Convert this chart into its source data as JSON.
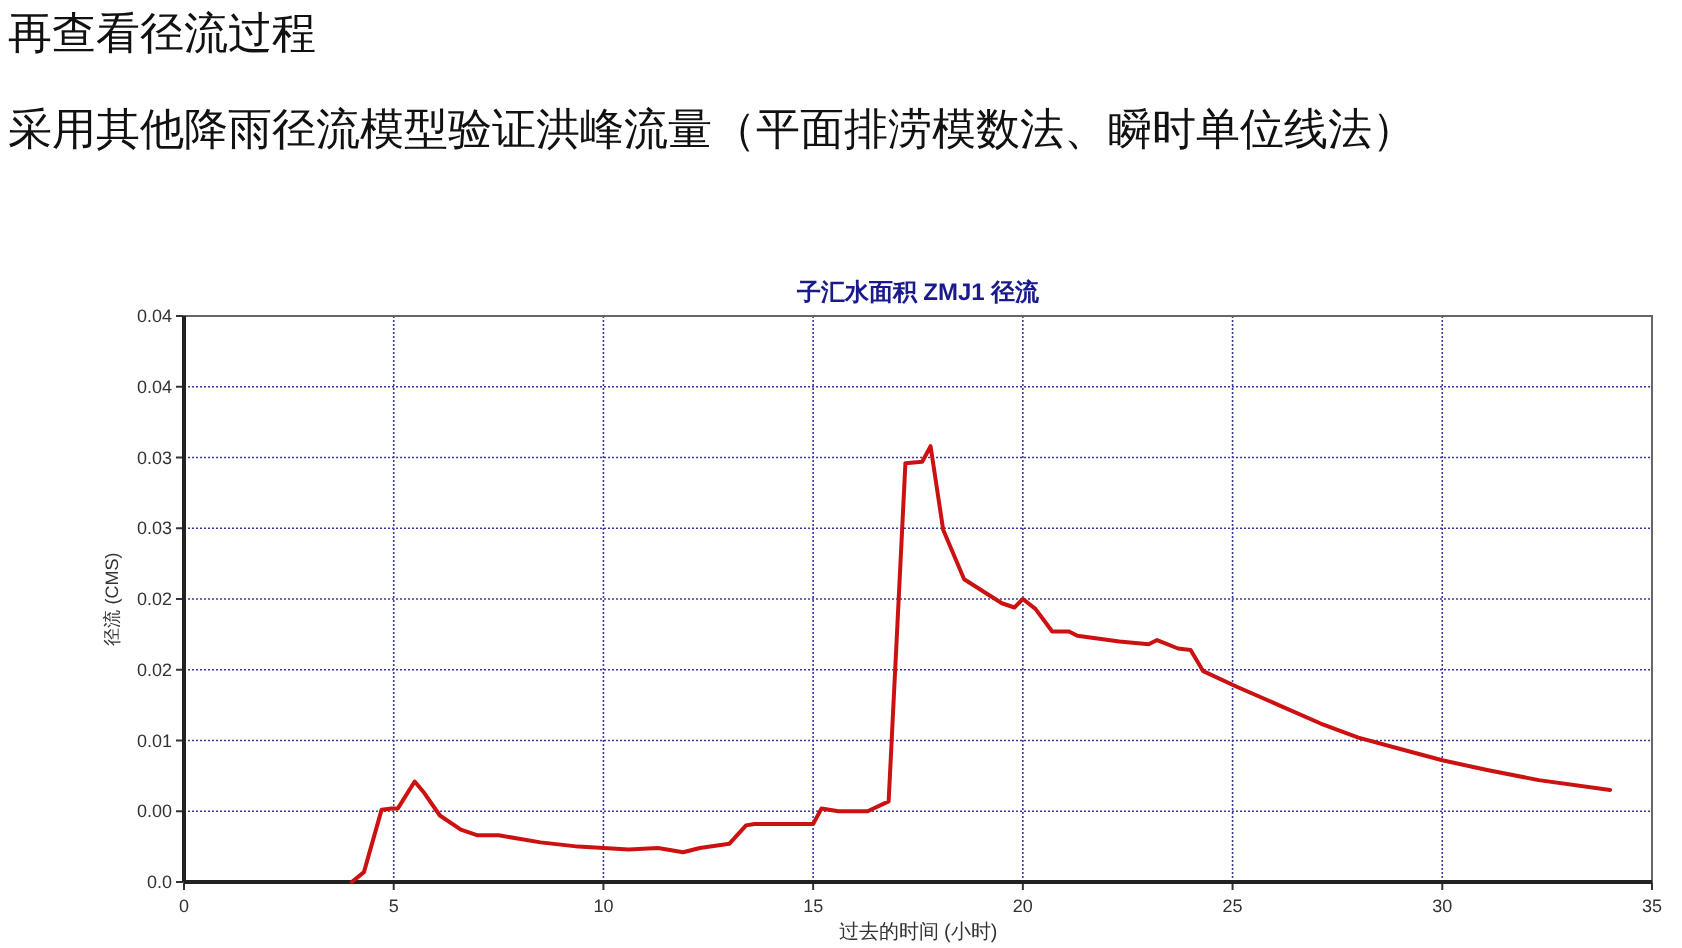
{
  "chart_data": {
    "type": "line",
    "title": "子汇水面积 ZMJ1 径流",
    "xlabel": "过去的时间 (小时)",
    "ylabel": "径流 (CMS)",
    "annotations": [
      "再查看径流过程",
      "采用其他降雨径流模型验证洪峰流量（平面排涝模数法、瞬时单位线法）"
    ],
    "series": [
      {
        "color": "#cc1111",
        "x": [
          4.0,
          4.29,
          4.71,
          4.95,
          5.1,
          5.5,
          5.7,
          6.1,
          6.6,
          7.0,
          7.5,
          8.5,
          9.4,
          10,
          10.6,
          11.3,
          11.9,
          12.3,
          13.0,
          13.4,
          13.6,
          15,
          15.2,
          15.6,
          16.3,
          16.8,
          17.2,
          17.6,
          17.8,
          18.1,
          18.6,
          19.5,
          19.8,
          20,
          20.3,
          20.7,
          21.1,
          21.3,
          22.3,
          23.0,
          23.2,
          23.7,
          24.0,
          24.3,
          25.1,
          26.1,
          27.1,
          28.0,
          29.0,
          30.0,
          31.1,
          32.3,
          34.0
        ],
        "values": [
          0,
          0.0007,
          0.0051,
          0.0052,
          0.0052,
          0.0071,
          0.0064,
          0.0047,
          0.0037,
          0.0033,
          0.0033,
          0.0028,
          0.0025,
          0.0024,
          0.0023,
          0.0024,
          0.0021,
          0.0024,
          0.0027,
          0.004,
          0.0041,
          0.0041,
          0.0052,
          0.005,
          0.005,
          0.0057,
          0.0296,
          0.0297,
          0.0308,
          0.0249,
          0.0214,
          0.0197,
          0.0194,
          0.02,
          0.0193,
          0.0177,
          0.0177,
          0.0174,
          0.017,
          0.0168,
          0.0171,
          0.0165,
          0.0164,
          0.0149,
          0.0138,
          0.0125,
          0.0112,
          0.0102,
          0.0094,
          0.0086,
          0.0079,
          0.0072,
          0.0065
        ]
      }
    ],
    "xlim": [
      0,
      35
    ],
    "xticks": [
      0,
      5,
      10,
      15,
      20,
      25,
      30,
      35
    ],
    "ylim": [
      0,
      0.04
    ],
    "yticks": [
      {
        "value": 0,
        "label": "0.0"
      },
      {
        "value": 0.005,
        "label": "0.00"
      },
      {
        "value": 0.01,
        "label": "0.01"
      },
      {
        "value": 0.015,
        "label": "0.02"
      },
      {
        "value": 0.02,
        "label": "0.02"
      },
      {
        "value": 0.025,
        "label": "0.03"
      },
      {
        "value": 0.03,
        "label": "0.03"
      },
      {
        "value": 0.035,
        "label": "0.04"
      },
      {
        "value": 0.04,
        "label": "0.04"
      }
    ],
    "grid": true,
    "marker": "none",
    "line_style": "solid"
  }
}
